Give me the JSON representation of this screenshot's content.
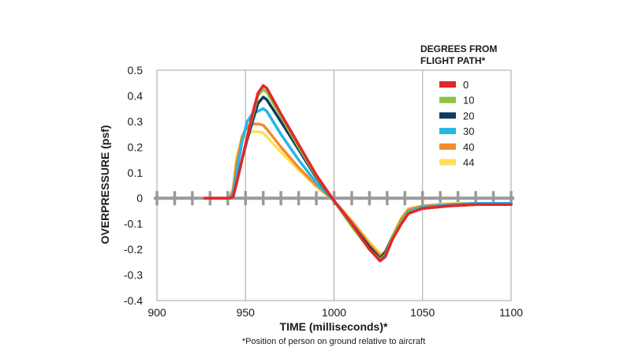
{
  "chart_data": {
    "type": "line",
    "title": "",
    "xlabel": "TIME (milliseconds)*",
    "ylabel": "OVERPRESSURE (psf)",
    "footnote": "*Position of person on ground relative to aircraft",
    "xlim": [
      900,
      1100
    ],
    "ylim": [
      -0.4,
      0.5
    ],
    "x_ticks": [
      "900",
      "950",
      "1000",
      "1050",
      "1100"
    ],
    "y_ticks": [
      "0.5",
      "0.4",
      "0.3",
      "0.2",
      "0.1",
      "0",
      "-0.1",
      "-0.2",
      "-0.3",
      "-0.4"
    ],
    "grid": "vertical",
    "zero_line": "dashed",
    "legend": {
      "title_lines": [
        "DEGREES FROM",
        "FLIGHT PATH*"
      ],
      "placement": "top-right"
    },
    "series": [
      {
        "name": "0",
        "color": "#e3262b",
        "x": [
          927,
          941,
          943,
          945,
          948,
          951,
          954,
          957,
          960,
          962,
          970,
          980,
          990,
          1000,
          1010,
          1020,
          1026,
          1029,
          1033,
          1038,
          1042,
          1050,
          1065,
          1080,
          1100
        ],
        "y": [
          0,
          0,
          0.005,
          0.06,
          0.15,
          0.24,
          0.33,
          0.41,
          0.44,
          0.43,
          0.33,
          0.21,
          0.09,
          -0.01,
          -0.1,
          -0.2,
          -0.245,
          -0.225,
          -0.16,
          -0.1,
          -0.06,
          -0.04,
          -0.03,
          -0.025,
          -0.025
        ]
      },
      {
        "name": "10",
        "color": "#8cc540",
        "x": [
          927,
          941,
          943,
          945,
          948,
          951,
          954,
          957,
          960,
          962,
          970,
          980,
          990,
          1000,
          1010,
          1020,
          1026,
          1029,
          1033,
          1038,
          1042,
          1050,
          1065,
          1080,
          1100
        ],
        "y": [
          0,
          0,
          0.005,
          0.06,
          0.15,
          0.24,
          0.32,
          0.4,
          0.425,
          0.415,
          0.32,
          0.2,
          0.085,
          -0.01,
          -0.11,
          -0.2,
          -0.24,
          -0.22,
          -0.15,
          -0.09,
          -0.055,
          -0.04,
          -0.03,
          -0.025,
          -0.025
        ]
      },
      {
        "name": "20",
        "color": "#0f3c5e",
        "x": [
          927,
          941,
          943,
          945,
          948,
          951,
          954,
          957,
          960,
          962,
          970,
          980,
          990,
          1000,
          1010,
          1020,
          1026,
          1029,
          1033,
          1038,
          1042,
          1050,
          1065,
          1080,
          1100
        ],
        "y": [
          0,
          0,
          0.005,
          0.06,
          0.15,
          0.23,
          0.3,
          0.37,
          0.395,
          0.385,
          0.3,
          0.19,
          0.08,
          -0.01,
          -0.1,
          -0.19,
          -0.235,
          -0.21,
          -0.15,
          -0.09,
          -0.055,
          -0.04,
          -0.03,
          -0.025,
          -0.025
        ]
      },
      {
        "name": "30",
        "color": "#25b5e9",
        "x": [
          927,
          941,
          943,
          945,
          948,
          951,
          954,
          957,
          960,
          962,
          970,
          980,
          990,
          1000,
          1010,
          1020,
          1026,
          1029,
          1033,
          1038,
          1042,
          1050,
          1065,
          1080,
          1100
        ],
        "y": [
          0,
          0,
          0.02,
          0.1,
          0.22,
          0.3,
          0.33,
          0.34,
          0.35,
          0.34,
          0.25,
          0.15,
          0.06,
          -0.01,
          -0.1,
          -0.19,
          -0.245,
          -0.23,
          -0.16,
          -0.09,
          -0.05,
          -0.035,
          -0.025,
          -0.02,
          -0.02
        ]
      },
      {
        "name": "40",
        "color": "#f58b2b",
        "x": [
          927,
          941,
          943,
          945,
          948,
          951,
          954,
          957,
          960,
          962,
          970,
          980,
          990,
          1000,
          1010,
          1020,
          1026,
          1029,
          1033,
          1038,
          1042,
          1050,
          1065,
          1080,
          1100
        ],
        "y": [
          0,
          0,
          0.03,
          0.14,
          0.24,
          0.28,
          0.29,
          0.29,
          0.285,
          0.27,
          0.2,
          0.12,
          0.05,
          -0.01,
          -0.09,
          -0.18,
          -0.225,
          -0.215,
          -0.15,
          -0.08,
          -0.045,
          -0.03,
          -0.025,
          -0.02,
          -0.02
        ]
      },
      {
        "name": "44",
        "color": "#fde05c",
        "x": [
          927,
          941,
          943,
          945,
          948,
          951,
          954,
          957,
          960,
          962,
          970,
          980,
          990,
          1000,
          1010,
          1020,
          1026,
          1029,
          1033,
          1038,
          1042,
          1050,
          1065,
          1080,
          1100
        ],
        "y": [
          0,
          0,
          0.04,
          0.16,
          0.23,
          0.25,
          0.26,
          0.26,
          0.255,
          0.24,
          0.18,
          0.11,
          0.045,
          -0.01,
          -0.09,
          -0.17,
          -0.215,
          -0.21,
          -0.15,
          -0.08,
          -0.04,
          -0.03,
          -0.02,
          -0.02,
          -0.02
        ]
      }
    ]
  }
}
